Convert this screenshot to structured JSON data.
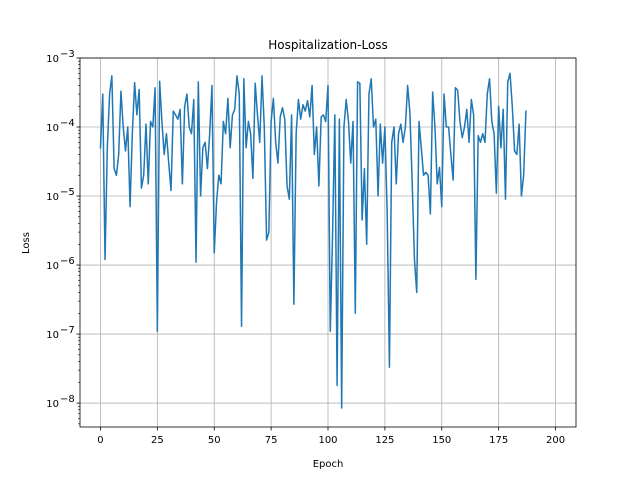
{
  "chart_data": {
    "type": "line",
    "title": "Hospitalization-Loss",
    "xlabel": "Epoch",
    "ylabel": "Loss",
    "xlim": [
      -9,
      209
    ],
    "ylim": [
      4.5e-09,
      0.001
    ],
    "yscale": "log",
    "grid": true,
    "x_ticks": [
      0,
      25,
      50,
      75,
      100,
      125,
      150,
      175,
      200
    ],
    "y_ticks": [
      {
        "value": 1e-08,
        "base": "10",
        "exp": "−8"
      },
      {
        "value": 1e-07,
        "base": "10",
        "exp": "−7"
      },
      {
        "value": 1e-06,
        "base": "10",
        "exp": "−6"
      },
      {
        "value": 1e-05,
        "base": "10",
        "exp": "−5"
      },
      {
        "value": 0.0001,
        "base": "10",
        "exp": "−4"
      },
      {
        "value": 0.001,
        "base": "10",
        "exp": "−3"
      }
    ],
    "series": [
      {
        "color": "#1f77b4",
        "x_start": 0,
        "values": [
          5e-05,
          0.0003,
          1.2e-06,
          5e-05,
          0.0003,
          0.00055,
          2.5e-05,
          2e-05,
          4e-05,
          0.00033,
          0.0001,
          4.5e-05,
          0.0001,
          7e-06,
          8e-05,
          0.00044,
          0.00015,
          0.00035,
          1.3e-05,
          2e-05,
          0.00011,
          1.5e-05,
          0.00012,
          0.0001,
          0.00037,
          1.1e-07,
          0.00046,
          0.00012,
          4e-05,
          8e-05,
          3e-05,
          1.2e-05,
          0.00017,
          0.00015,
          0.00013,
          0.00018,
          1.5e-05,
          0.0002,
          0.0003,
          0.0001,
          8e-05,
          0.00025,
          1.1e-06,
          0.00045,
          1e-05,
          5e-05,
          6e-05,
          2.5e-05,
          8e-05,
          0.0004,
          1.5e-06,
          8e-06,
          2e-05,
          1.5e-05,
          0.00012,
          8e-05,
          0.00026,
          5e-05,
          0.00015,
          0.00018,
          0.00055,
          0.0003,
          1.3e-07,
          0.0005,
          5e-05,
          0.00012,
          8e-05,
          1.8e-05,
          0.00043,
          0.00015,
          6e-05,
          0.00055,
          0.0001,
          2.3e-06,
          3e-06,
          0.00012,
          0.00026,
          6e-05,
          3e-05,
          0.00014,
          0.00019,
          0.00013,
          1.4e-05,
          9e-06,
          0.00015,
          2.7e-07,
          8e-05,
          0.00025,
          0.00013,
          0.00021,
          0.00017,
          0.00024,
          0.00014,
          0.0004,
          4e-05,
          0.0001,
          1.4e-05,
          0.00014,
          0.00015,
          0.00012,
          0.0004,
          1.1e-07,
          2.7e-06,
          0.00015,
          1.8e-08,
          0.00013,
          8.5e-09,
          0.0001,
          0.00025,
          0.00012,
          3e-05,
          0.00012,
          2e-07,
          0.00045,
          0.00043,
          4.5e-06,
          2.5e-05,
          2e-06,
          0.0003,
          0.0005,
          0.0001,
          0.00013,
          1e-05,
          0.00011,
          3e-05,
          0.0001,
          6e-06,
          3.3e-08,
          6e-05,
          0.0001,
          1.5e-05,
          8e-05,
          0.00011,
          6e-05,
          0.0001,
          0.0004,
          0.00016,
          1.6e-05,
          1.2e-06,
          4e-07,
          0.00012,
          5e-05,
          2e-05,
          2.2e-05,
          2e-05,
          5.5e-06,
          0.00032,
          0.0001,
          1.5e-05,
          2.6e-05,
          7e-06,
          0.0003,
          0.0001,
          0.0001,
          4e-05,
          1.7e-05,
          0.00037,
          0.00034,
          0.00012,
          7e-05,
          0.0001,
          0.00018,
          6e-05,
          0.00025,
          0.00015,
          6.2e-07,
          7.5e-05,
          6e-05,
          8e-05,
          6e-05,
          0.0003,
          0.0005,
          0.00012,
          8e-05,
          1.1e-05,
          0.0002,
          5e-05,
          0.00018,
          9e-06,
          0.00045,
          0.0006,
          0.0002,
          4.5e-05,
          4e-05,
          0.00011,
          1e-05,
          2e-05,
          0.00017
        ]
      }
    ]
  }
}
